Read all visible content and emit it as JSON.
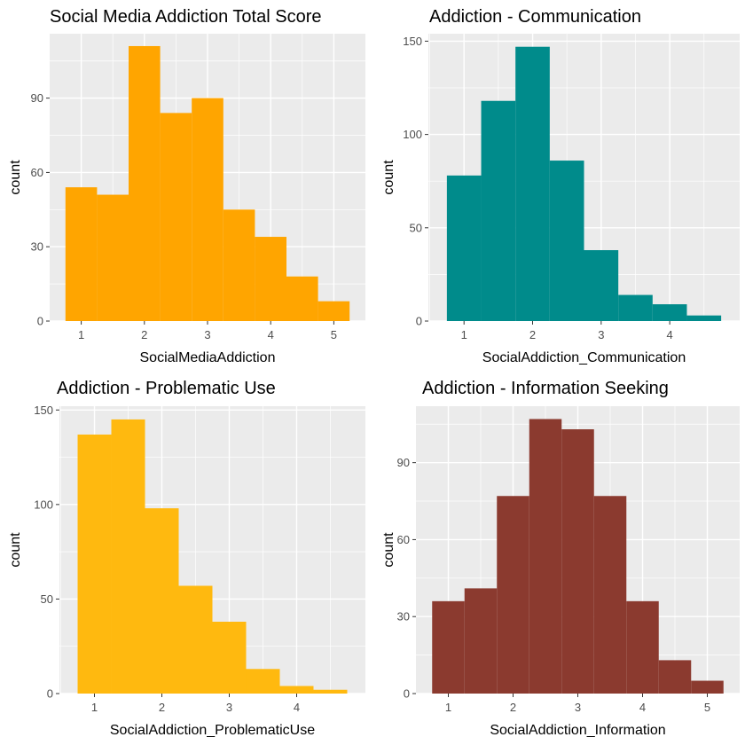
{
  "chart_data": [
    {
      "type": "bar",
      "title": "Social Media Addiction Total Score",
      "xlabel": "SocialMediaAddiction",
      "ylabel": "count",
      "color": "#FFA500",
      "bin_edges": [
        0.75,
        1.25,
        1.75,
        2.25,
        2.75,
        3.25,
        3.75,
        4.25,
        4.75,
        5.25
      ],
      "values": [
        54,
        51,
        111,
        84,
        90,
        45,
        34,
        18,
        8
      ],
      "xlim": [
        0.5,
        5.5
      ],
      "ylim": [
        0,
        116
      ],
      "x_ticks": [
        1,
        2,
        3,
        4,
        5
      ],
      "x_tick_labels": [
        "1",
        "2",
        "3",
        "4",
        "5"
      ],
      "y_ticks": [
        0,
        30,
        60,
        90
      ],
      "y_tick_labels": [
        "0",
        "30",
        "60",
        "90"
      ],
      "grid": true
    },
    {
      "type": "bar",
      "title": "Addiction - Communication",
      "xlabel": "SocialAddiction_Communication",
      "ylabel": "count",
      "color": "#008B8B",
      "bin_edges": [
        0.75,
        1.25,
        1.75,
        2.25,
        2.75,
        3.25,
        3.75,
        4.25,
        4.75
      ],
      "values": [
        78,
        118,
        147,
        86,
        38,
        14,
        9,
        3
      ],
      "xlim": [
        0.48,
        5.02
      ],
      "ylim": [
        0,
        154
      ],
      "x_ticks": [
        1,
        2,
        3,
        4
      ],
      "x_tick_labels": [
        "1",
        "2",
        "3",
        "4"
      ],
      "y_ticks": [
        0,
        50,
        100,
        150
      ],
      "y_tick_labels": [
        "0",
        "50",
        "100",
        "150"
      ],
      "grid": true
    },
    {
      "type": "bar",
      "title": "Addiction - Problematic Use",
      "xlabel": "SocialAddiction_ProblematicUse",
      "ylabel": "count",
      "color": "#FFB90F",
      "bin_edges": [
        0.75,
        1.25,
        1.75,
        2.25,
        2.75,
        3.25,
        3.75,
        4.25,
        4.75
      ],
      "values": [
        137,
        145,
        98,
        57,
        38,
        13,
        4,
        2
      ],
      "xlim": [
        0.48,
        5.02
      ],
      "ylim": [
        0,
        152
      ],
      "x_ticks": [
        1,
        2,
        3,
        4
      ],
      "x_tick_labels": [
        "1",
        "2",
        "3",
        "4"
      ],
      "y_ticks": [
        0,
        50,
        100,
        150
      ],
      "y_tick_labels": [
        "0",
        "50",
        "100",
        "150"
      ],
      "grid": true
    },
    {
      "type": "bar",
      "title": "Addiction - Information Seeking",
      "xlabel": "SocialAddiction_Information",
      "ylabel": "count",
      "color": "#8B3A2F",
      "bin_edges": [
        0.75,
        1.25,
        1.75,
        2.25,
        2.75,
        3.25,
        3.75,
        4.25,
        4.75,
        5.25
      ],
      "values": [
        36,
        41,
        77,
        107,
        103,
        77,
        36,
        13,
        5
      ],
      "xlim": [
        0.5,
        5.5
      ],
      "ylim": [
        0,
        112
      ],
      "x_ticks": [
        1,
        2,
        3,
        4,
        5
      ],
      "x_tick_labels": [
        "1",
        "2",
        "3",
        "4",
        "5"
      ],
      "y_ticks": [
        0,
        30,
        60,
        90
      ],
      "y_tick_labels": [
        "0",
        "30",
        "60",
        "90"
      ],
      "grid": true
    }
  ]
}
